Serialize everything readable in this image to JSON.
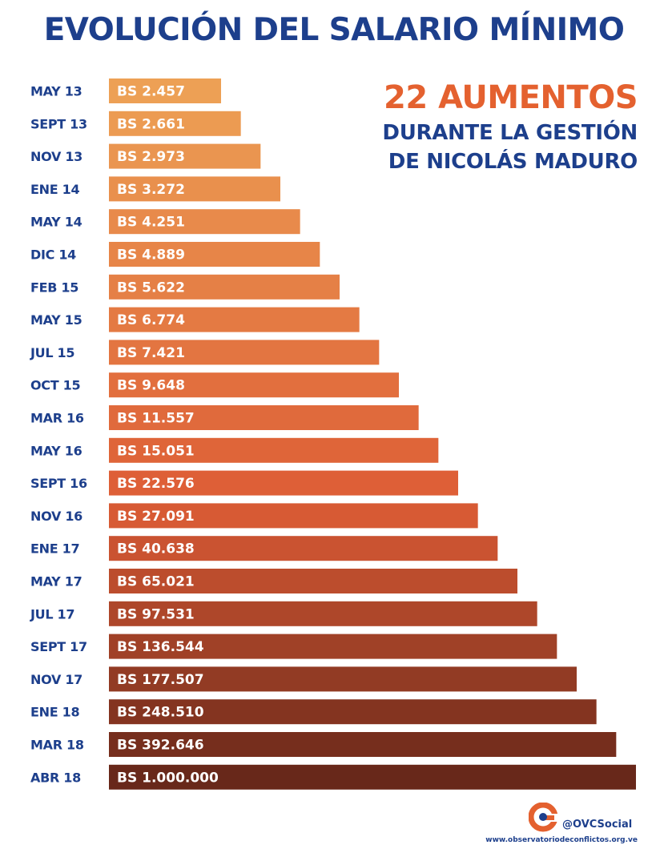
{
  "header": {
    "title": "EVOLUCIÓN DEL SALARIO MÍNIMO"
  },
  "callout": {
    "headline": "22 AUMENTOS",
    "line1": "DURANTE LA GESTIÓN",
    "line2": "DE NICOLÁS MADURO"
  },
  "footer": {
    "handle": "@OVCSocial",
    "website": "www.observatoriodeconflictos.org.ve",
    "logo_icon": "ovc-logo-icon"
  },
  "colors": {
    "title": "#1d3f8c",
    "headline": "#e4612f",
    "bar_start": "#eda055",
    "bar_mid": "#dd5c35",
    "bar_end": "#68281a"
  },
  "chart_data": {
    "type": "bar",
    "orientation": "horizontal",
    "title": "EVOLUCIÓN DEL SALARIO MÍNIMO",
    "xlabel": "",
    "ylabel": "",
    "categories": [
      "MAY 13",
      "SEPT 13",
      "NOV 13",
      "ENE 14",
      "MAY 14",
      "DIC 14",
      "FEB 15",
      "MAY 15",
      "JUL 15",
      "OCT 15",
      "MAR 16",
      "MAY 16",
      "SEPT 16",
      "NOV 16",
      "ENE 17",
      "MAY 17",
      "JUL 17",
      "SEPT 17",
      "NOV 17",
      "ENE 18",
      "MAR 18",
      "ABR 18"
    ],
    "values": [
      2457,
      2661,
      2973,
      3272,
      4251,
      4889,
      5622,
      6774,
      7421,
      9648,
      11557,
      15051,
      22576,
      27091,
      40638,
      65021,
      97531,
      136544,
      177507,
      248510,
      392646,
      1000000
    ],
    "value_labels": [
      "BS 2.457",
      "BS 2.661",
      "BS 2.973",
      "BS 3.272",
      "BS 4.251",
      "BS 4.889",
      "BS 5.622",
      "BS 6.774",
      "BS 7.421",
      "BS 9.648",
      "BS 11.557",
      "BS 15.051",
      "BS 22.576",
      "BS 27.091",
      "BS 40.638",
      "BS 65.021",
      "BS 97.531",
      "BS 136.544",
      "BS 177.507",
      "BS 248.510",
      "BS 392.646",
      "BS 1.000.000"
    ],
    "scale": "staircase (non-proportional)",
    "grid": false,
    "legend": "none"
  }
}
